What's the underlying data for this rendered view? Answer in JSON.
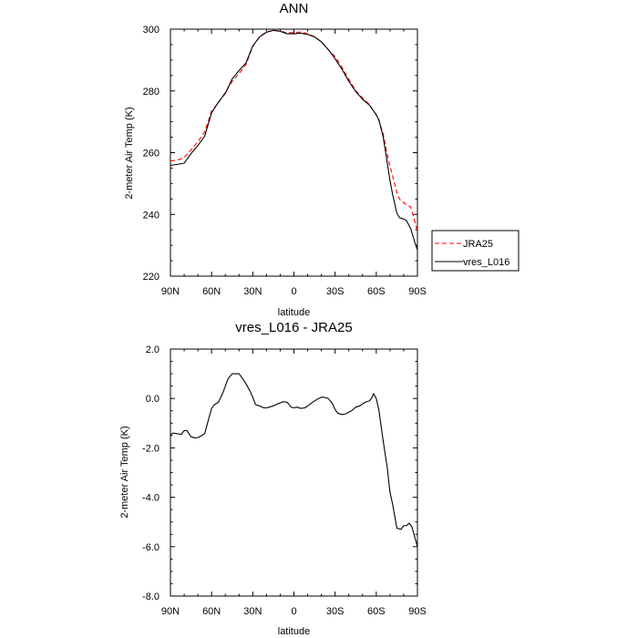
{
  "chart_data": [
    {
      "type": "line",
      "title": "ANN",
      "xlabel": "latitude",
      "ylabel": "2-meter Air Temp (K)",
      "xlim": [
        90,
        -90
      ],
      "ylim": [
        220,
        300
      ],
      "x_ticks": [
        90,
        60,
        30,
        0,
        -30,
        -60,
        -90
      ],
      "x_tick_labels": [
        "90N",
        "60N",
        "30N",
        "0",
        "30S",
        "60S",
        "90S"
      ],
      "y_ticks": [
        220,
        240,
        260,
        280,
        300
      ],
      "y_tick_labels": [
        "220",
        "240",
        "260",
        "280",
        "300"
      ],
      "legend_position": "right",
      "series": [
        {
          "name": "JRA25",
          "color": "#ff0000",
          "dash": "dashed",
          "x": [
            90,
            85,
            80,
            75,
            70,
            65,
            60,
            55,
            50,
            45,
            40,
            35,
            30,
            25,
            20,
            15,
            10,
            5,
            0,
            -5,
            -10,
            -15,
            -20,
            -25,
            -30,
            -35,
            -40,
            -45,
            -50,
            -55,
            -60,
            -62,
            -65,
            -67,
            -70,
            -72,
            -75,
            -77,
            -80,
            -82,
            -85,
            -88,
            -90
          ],
          "values": [
            257.3,
            257.6,
            258.4,
            260.9,
            263.5,
            266.8,
            273.5,
            276.2,
            279.5,
            283.1,
            285.6,
            288.5,
            294.4,
            297.6,
            299.1,
            299.6,
            299.4,
            298.8,
            298.9,
            299.1,
            298.5,
            297.6,
            295.9,
            293.4,
            291.1,
            287.7,
            283.8,
            280.1,
            277.7,
            275.6,
            272.2,
            270.3,
            266.2,
            261.5,
            255.6,
            252.3,
            247.1,
            244.9,
            243.8,
            243.2,
            242.5,
            237.9,
            234.5
          ]
        },
        {
          "name": "vres_L016",
          "color": "#000000",
          "dash": "solid",
          "x": [
            90,
            85,
            80,
            75,
            70,
            65,
            60,
            55,
            50,
            45,
            40,
            35,
            30,
            25,
            20,
            15,
            10,
            5,
            0,
            -5,
            -10,
            -15,
            -20,
            -25,
            -30,
            -35,
            -40,
            -45,
            -50,
            -55,
            -60,
            -62,
            -65,
            -67,
            -70,
            -72,
            -75,
            -77,
            -80,
            -82,
            -85,
            -88,
            -90
          ],
          "values": [
            255.9,
            256.2,
            256.6,
            259.7,
            262.3,
            265.4,
            272.9,
            276.4,
            279.2,
            283.9,
            286.6,
            289.0,
            294.6,
            297.5,
            299.0,
            299.6,
            299.3,
            298.5,
            298.5,
            298.7,
            298.3,
            297.5,
            295.9,
            293.4,
            290.4,
            287.0,
            283.1,
            279.8,
            277.3,
            275.4,
            272.3,
            270.5,
            265.2,
            259.6,
            251.0,
            246.3,
            240.4,
            238.9,
            238.5,
            238.0,
            235.5,
            231.1,
            228.5
          ]
        }
      ]
    },
    {
      "type": "line",
      "title": "vres_L016 - JRA25",
      "xlabel": "latitude",
      "ylabel": "2-meter Air Temp (K)",
      "xlim": [
        90,
        -90
      ],
      "ylim": [
        -8.0,
        2.0
      ],
      "x_ticks": [
        90,
        60,
        30,
        0,
        -30,
        -60,
        -90
      ],
      "x_tick_labels": [
        "90N",
        "60N",
        "30N",
        "0",
        "30S",
        "60S",
        "90S"
      ],
      "y_ticks": [
        -8.0,
        -6.0,
        -4.0,
        -2.0,
        0.0,
        2.0
      ],
      "y_tick_labels": [
        "-8.0",
        "-6.0",
        "-4.0",
        "-2.0",
        "0.0",
        "2.0"
      ],
      "series": [
        {
          "name": "vres_L016 - JRA25",
          "color": "#000000",
          "dash": "solid",
          "x": [
            90,
            88,
            85,
            82,
            80,
            78,
            75,
            72,
            70,
            67,
            65,
            62,
            60,
            58,
            55,
            52,
            50,
            48,
            45,
            42,
            40,
            38,
            35,
            32,
            30,
            28,
            25,
            22,
            20,
            18,
            15,
            12,
            10,
            8,
            5,
            2,
            0,
            -2,
            -5,
            -8,
            -10,
            -12,
            -15,
            -18,
            -20,
            -22,
            -25,
            -28,
            -30,
            -32,
            -35,
            -38,
            -40,
            -42,
            -45,
            -48,
            -50,
            -52,
            -55,
            -57,
            -58,
            -60,
            -62,
            -65,
            -68,
            -70,
            -72,
            -75,
            -78,
            -80,
            -82,
            -84,
            -86,
            -88,
            -90
          ],
          "values": [
            -1.47,
            -1.4,
            -1.43,
            -1.45,
            -1.3,
            -1.3,
            -1.55,
            -1.6,
            -1.58,
            -1.5,
            -1.42,
            -0.8,
            -0.4,
            -0.25,
            -0.15,
            0.2,
            0.5,
            0.8,
            1.0,
            1.0,
            1.0,
            0.85,
            0.6,
            0.3,
            0.05,
            -0.25,
            -0.3,
            -0.38,
            -0.38,
            -0.35,
            -0.3,
            -0.22,
            -0.18,
            -0.13,
            -0.15,
            -0.35,
            -0.38,
            -0.35,
            -0.4,
            -0.38,
            -0.3,
            -0.22,
            -0.1,
            0.0,
            0.05,
            0.05,
            0.0,
            -0.2,
            -0.45,
            -0.6,
            -0.65,
            -0.62,
            -0.55,
            -0.5,
            -0.35,
            -0.3,
            -0.22,
            -0.15,
            -0.1,
            0.05,
            0.2,
            0.0,
            -0.5,
            -1.7,
            -2.8,
            -3.8,
            -4.3,
            -5.25,
            -5.3,
            -5.15,
            -5.15,
            -5.05,
            -5.2,
            -5.6,
            -6.0
          ]
        }
      ]
    }
  ],
  "legend": {
    "items": [
      {
        "label": "JRA25",
        "color": "#ff0000",
        "dash": "dashed"
      },
      {
        "label": "vres_L016",
        "color": "#000000",
        "dash": "solid"
      }
    ]
  }
}
